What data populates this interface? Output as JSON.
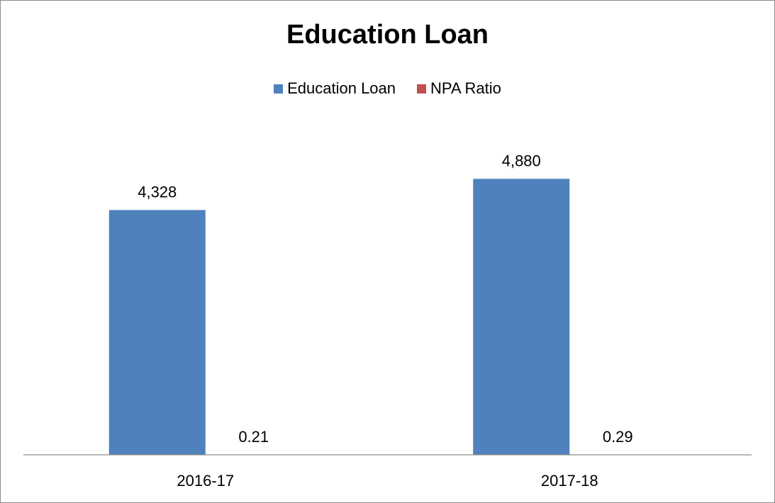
{
  "chart_data": {
    "type": "bar",
    "title": "Education Loan",
    "categories": [
      "2016-17",
      "2017-18"
    ],
    "series": [
      {
        "name": "Education Loan",
        "values": [
          4328,
          4880
        ],
        "labels": [
          "4,328",
          "4,880"
        ],
        "color": "#4f81bd"
      },
      {
        "name": "NPA Ratio",
        "values": [
          0.21,
          0.29
        ],
        "labels": [
          "0.21",
          "0.29"
        ],
        "color": "#c0504d"
      }
    ],
    "xlabel": "",
    "ylabel": "",
    "ylim": [
      0,
      6000
    ],
    "grid": false,
    "legend_position": "top"
  }
}
